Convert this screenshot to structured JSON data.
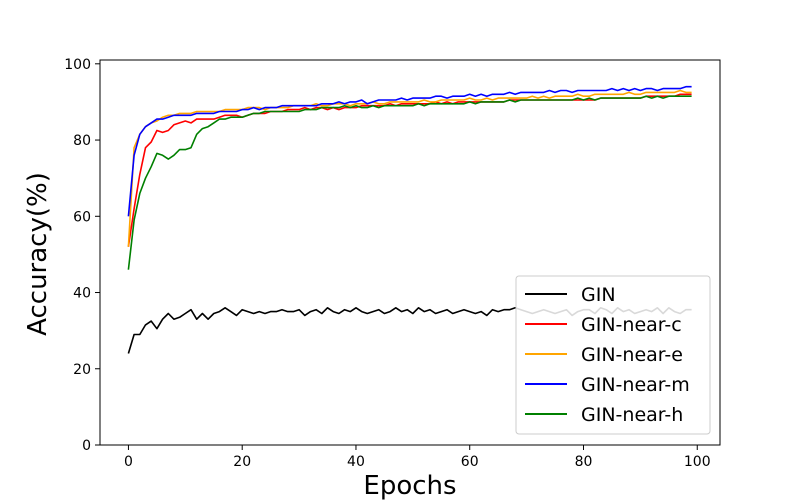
{
  "chart_data": {
    "type": "line",
    "title": "",
    "xlabel": "Epochs",
    "ylabel": "Accuracy(%)",
    "xlim": [
      -5,
      104
    ],
    "ylim": [
      0,
      101
    ],
    "xticks": [
      0,
      20,
      40,
      60,
      80,
      100
    ],
    "yticks": [
      0,
      20,
      40,
      60,
      80,
      100
    ],
    "grid": false,
    "legend_position": "lower-right",
    "x": [
      0,
      1,
      2,
      3,
      4,
      5,
      6,
      7,
      8,
      9,
      10,
      11,
      12,
      13,
      14,
      15,
      16,
      17,
      18,
      19,
      20,
      21,
      22,
      23,
      24,
      25,
      26,
      27,
      28,
      29,
      30,
      31,
      32,
      33,
      34,
      35,
      36,
      37,
      38,
      39,
      40,
      41,
      42,
      43,
      44,
      45,
      46,
      47,
      48,
      49,
      50,
      51,
      52,
      53,
      54,
      55,
      56,
      57,
      58,
      59,
      60,
      61,
      62,
      63,
      64,
      65,
      66,
      67,
      68,
      69,
      70,
      71,
      72,
      73,
      74,
      75,
      76,
      77,
      78,
      79,
      80,
      81,
      82,
      83,
      84,
      85,
      86,
      87,
      88,
      89,
      90,
      91,
      92,
      93,
      94,
      95,
      96,
      97,
      98,
      99
    ],
    "series": [
      {
        "name": "GIN",
        "color": "#000000",
        "values": [
          24.0,
          29.0,
          29.0,
          31.5,
          32.5,
          30.5,
          33.0,
          34.5,
          33.0,
          33.5,
          34.5,
          35.5,
          33.0,
          34.5,
          33.0,
          34.5,
          35.0,
          36.0,
          35.0,
          34.0,
          35.5,
          35.0,
          34.5,
          35.0,
          34.5,
          35.0,
          35.0,
          35.5,
          35.0,
          35.0,
          35.5,
          34.0,
          35.0,
          35.5,
          34.5,
          36.0,
          35.0,
          34.5,
          35.5,
          35.0,
          36.0,
          35.0,
          34.5,
          35.0,
          35.5,
          34.5,
          35.0,
          36.0,
          35.0,
          35.5,
          34.5,
          36.0,
          35.0,
          35.5,
          34.5,
          35.0,
          35.5,
          34.5,
          35.0,
          35.5,
          35.0,
          34.5,
          35.0,
          34.0,
          35.5,
          35.0,
          35.5,
          35.5,
          36.0,
          35.5,
          35.0,
          34.5,
          35.0,
          35.5,
          35.0,
          34.5,
          35.0,
          35.5,
          34.0,
          35.0,
          35.5,
          35.5,
          34.5,
          36.0,
          35.5,
          34.5,
          36.0,
          35.0,
          35.5,
          34.5,
          35.0,
          35.5,
          35.0,
          36.0,
          34.5,
          36.0,
          35.0,
          34.5,
          35.5,
          35.5
        ]
      },
      {
        "name": "GIN-near-c",
        "color": "#ff0000",
        "values": [
          52.0,
          62.0,
          71.0,
          78.0,
          79.5,
          82.5,
          82.0,
          82.5,
          84.0,
          84.5,
          85.0,
          84.5,
          85.5,
          85.5,
          85.5,
          85.5,
          86.0,
          86.5,
          86.5,
          86.5,
          86.0,
          86.5,
          87.0,
          87.0,
          87.0,
          87.5,
          87.5,
          87.5,
          88.0,
          88.0,
          88.0,
          88.5,
          88.0,
          88.5,
          88.5,
          88.0,
          88.5,
          88.0,
          88.5,
          88.5,
          88.5,
          89.0,
          89.0,
          89.0,
          89.0,
          89.0,
          89.5,
          89.0,
          89.5,
          89.5,
          89.5,
          89.5,
          89.5,
          89.5,
          90.0,
          89.5,
          90.0,
          89.5,
          90.0,
          90.0,
          90.0,
          90.0,
          90.0,
          90.0,
          90.0,
          90.0,
          90.0,
          90.5,
          90.5,
          90.5,
          90.5,
          90.5,
          90.5,
          90.5,
          90.5,
          90.5,
          90.5,
          90.5,
          90.5,
          90.5,
          90.5,
          90.5,
          90.5,
          91.0,
          91.0,
          91.0,
          91.0,
          91.0,
          91.0,
          91.0,
          91.0,
          91.5,
          91.5,
          91.5,
          91.5,
          91.5,
          91.5,
          92.0,
          92.0,
          92.0
        ]
      },
      {
        "name": "GIN-near-e",
        "color": "#ffa500",
        "values": [
          52.0,
          78.0,
          81.5,
          83.5,
          84.5,
          85.0,
          86.0,
          86.5,
          86.5,
          87.0,
          87.0,
          87.0,
          87.5,
          87.5,
          87.5,
          87.5,
          87.5,
          88.0,
          88.0,
          88.0,
          88.0,
          88.5,
          88.5,
          88.5,
          88.0,
          88.5,
          88.5,
          88.5,
          88.5,
          89.0,
          89.0,
          89.0,
          89.0,
          89.5,
          89.0,
          89.0,
          89.5,
          89.5,
          89.5,
          89.0,
          89.5,
          89.5,
          89.5,
          90.0,
          89.5,
          89.5,
          90.0,
          90.0,
          90.0,
          90.0,
          90.0,
          90.0,
          90.5,
          90.0,
          90.0,
          90.5,
          90.5,
          90.5,
          90.5,
          90.5,
          91.0,
          90.5,
          90.5,
          91.0,
          90.5,
          91.0,
          91.0,
          91.0,
          91.0,
          91.0,
          91.0,
          91.5,
          91.0,
          91.5,
          91.0,
          91.5,
          91.5,
          91.5,
          91.5,
          92.0,
          91.5,
          91.5,
          92.0,
          92.0,
          92.0,
          92.0,
          92.0,
          92.0,
          92.5,
          92.0,
          92.0,
          92.5,
          92.5,
          92.5,
          92.5,
          92.5,
          92.5,
          93.0,
          92.5,
          92.5
        ]
      },
      {
        "name": "GIN-near-m",
        "color": "#0000ff",
        "values": [
          60.0,
          76.0,
          81.5,
          83.5,
          84.5,
          85.5,
          85.5,
          86.0,
          86.5,
          86.5,
          86.5,
          86.5,
          87.0,
          87.0,
          87.0,
          87.0,
          87.5,
          87.5,
          87.5,
          87.5,
          88.0,
          88.0,
          88.5,
          88.0,
          88.5,
          88.5,
          88.5,
          89.0,
          89.0,
          89.0,
          89.0,
          89.0,
          89.0,
          89.0,
          89.5,
          89.5,
          89.5,
          90.0,
          89.5,
          90.0,
          90.0,
          90.5,
          89.5,
          90.0,
          90.5,
          90.5,
          90.5,
          90.5,
          91.0,
          90.5,
          91.0,
          91.0,
          91.0,
          91.0,
          91.5,
          91.5,
          91.0,
          91.5,
          91.5,
          91.5,
          92.0,
          91.5,
          92.0,
          91.5,
          92.0,
          92.0,
          92.0,
          92.5,
          92.0,
          92.5,
          92.5,
          92.5,
          92.5,
          92.5,
          93.0,
          92.5,
          93.0,
          93.0,
          92.5,
          93.0,
          93.0,
          93.0,
          93.0,
          93.0,
          93.0,
          93.5,
          93.0,
          93.5,
          93.0,
          93.5,
          93.0,
          93.5,
          93.5,
          93.0,
          93.5,
          93.5,
          93.5,
          93.5,
          94.0,
          94.0
        ]
      },
      {
        "name": "GIN-near-h",
        "color": "#008000",
        "values": [
          46.0,
          59.0,
          66.0,
          70.0,
          73.0,
          76.5,
          76.0,
          75.0,
          76.0,
          77.5,
          77.5,
          78.0,
          81.5,
          83.0,
          83.5,
          84.5,
          85.5,
          85.5,
          86.0,
          86.0,
          86.0,
          86.5,
          87.0,
          87.0,
          87.5,
          87.5,
          87.5,
          87.5,
          87.5,
          87.5,
          87.5,
          88.0,
          88.0,
          88.0,
          88.5,
          88.5,
          88.5,
          88.5,
          89.0,
          88.5,
          89.0,
          88.5,
          88.5,
          89.0,
          88.5,
          89.0,
          89.0,
          89.0,
          89.0,
          89.0,
          89.0,
          89.5,
          89.0,
          89.5,
          89.5,
          89.5,
          89.5,
          89.5,
          89.5,
          89.5,
          90.0,
          89.5,
          90.0,
          90.0,
          90.0,
          90.0,
          90.0,
          90.5,
          90.0,
          90.5,
          90.5,
          90.5,
          90.5,
          90.5,
          90.5,
          90.5,
          90.5,
          90.5,
          90.5,
          91.0,
          90.5,
          91.0,
          90.5,
          91.0,
          91.0,
          91.0,
          91.0,
          91.0,
          91.0,
          91.0,
          91.0,
          91.5,
          91.0,
          91.5,
          91.0,
          91.5,
          91.5,
          91.5,
          91.5,
          91.5
        ]
      }
    ]
  }
}
